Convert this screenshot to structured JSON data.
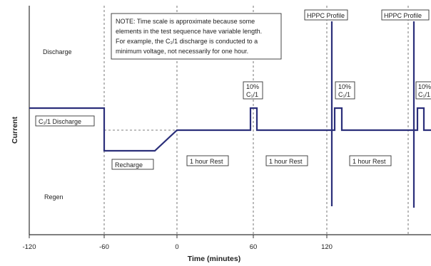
{
  "axes": {
    "y_title": "Current",
    "x_title": "Time (minutes)",
    "x_ticks": [
      "-120",
      "-60",
      "0",
      "60",
      "120"
    ]
  },
  "regions": {
    "discharge": "Discharge",
    "regen": "Regen"
  },
  "note": {
    "lines": [
      "NOTE: Time scale is approximate because some",
      "elements in the test sequence have variable length.",
      "For example, the C₁/1 discharge is conducted to a",
      "minimum voltage, not necessarily for one hour."
    ]
  },
  "labels": {
    "c1_discharge": "C₁/1 Discharge",
    "recharge": "Recharge",
    "rest1": "1 hour Rest",
    "rest2": "1 hour Rest",
    "rest3": "1 hour Rest",
    "pulse1": [
      "10%",
      "C₁/1"
    ],
    "pulse2": [
      "10%",
      "C₁/1"
    ],
    "pulse3": [
      "10%",
      "C₁/1"
    ],
    "hppc1": "HPPC Profile",
    "hppc2": "HPPC Profile"
  },
  "colors": {
    "profile": "#2b2f7a",
    "axis": "#333333",
    "dashed": "#555555"
  }
}
